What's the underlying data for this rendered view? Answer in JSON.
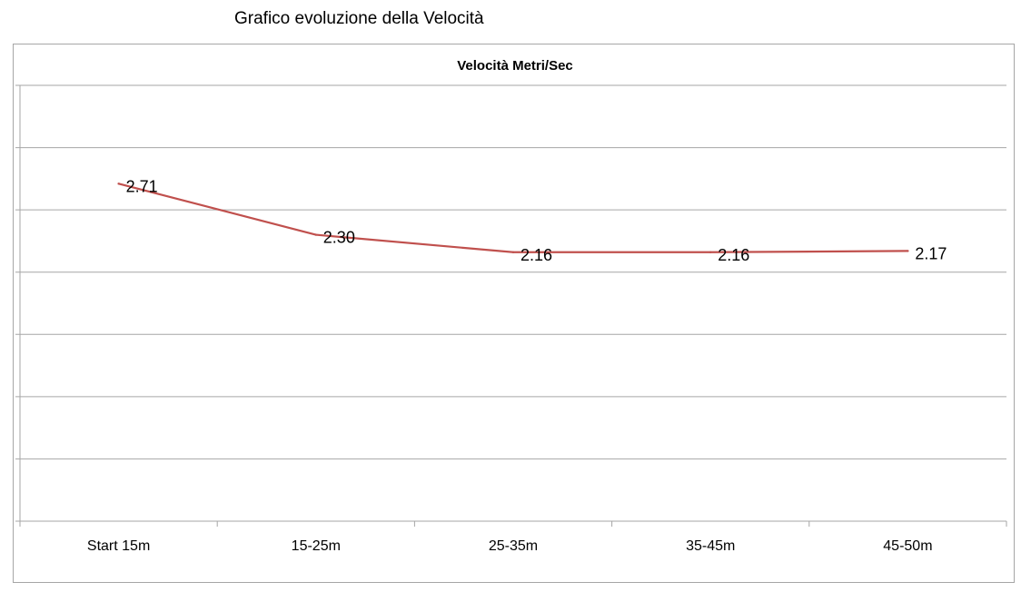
{
  "heading": "Grafico evoluzione della Velocità",
  "chart_data": {
    "type": "line",
    "title": "Velocità Metri/Sec",
    "categories": [
      "Start 15m",
      "15-25m",
      "25-35m",
      "35-45m",
      "45-50m"
    ],
    "series": [
      {
        "values": [
          2.71,
          2.3,
          2.16,
          2.16,
          2.17
        ],
        "data_labels": [
          "2.71",
          "2.30",
          "2.16",
          "2.16",
          "2.17"
        ],
        "color": "#c0504d"
      }
    ],
    "ylim": [
      0,
      3.5
    ],
    "ytick_step": 0.5,
    "grid": true,
    "legend": "none",
    "xlabel": "",
    "ylabel": ""
  },
  "colors": {
    "gridline": "#a6a6a6",
    "axis": "#a6a6a6",
    "series": "#c0504d"
  }
}
